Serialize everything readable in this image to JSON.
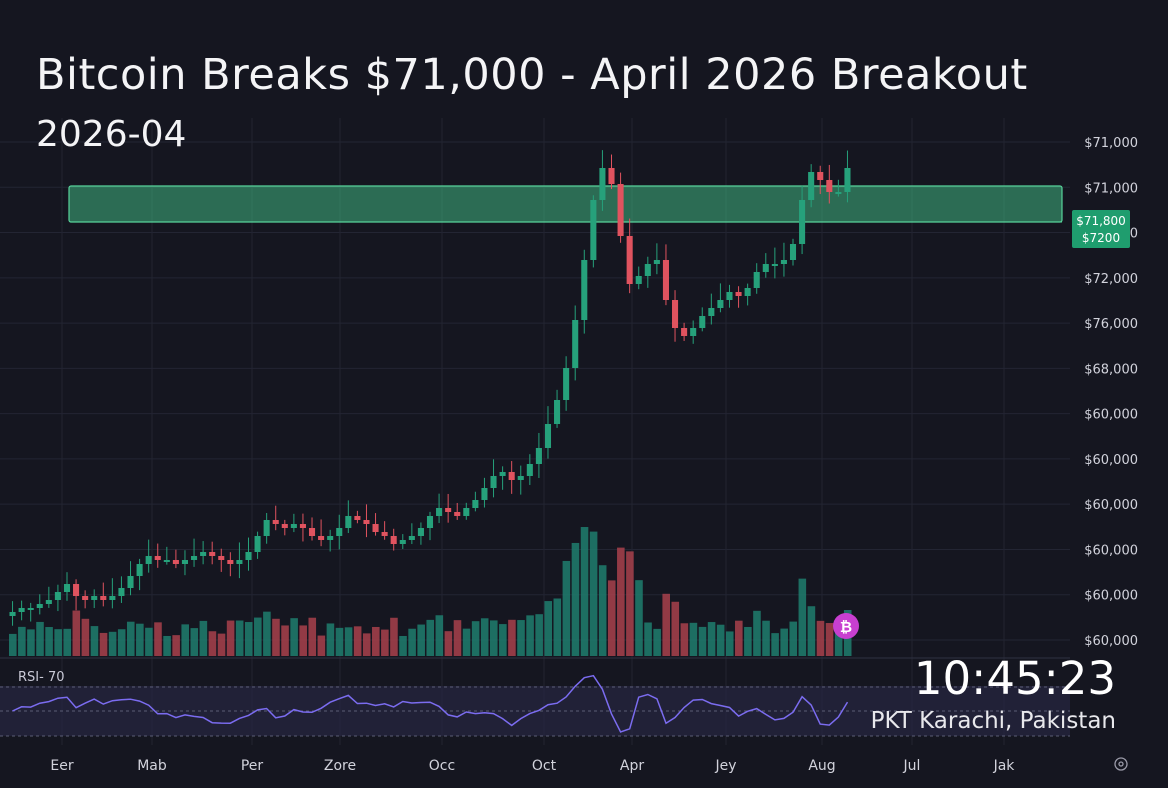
{
  "header": {
    "title": "Bitcoin Breaks $71,000 - April 2026 Breakout",
    "subtitle": "2026-04"
  },
  "overlay": {
    "time": "10:45:23",
    "location": "PKT Karachi, Pakistan"
  },
  "indicator": {
    "rsi_label": "RSI- 70"
  },
  "price_badge": {
    "line1": "$71,800",
    "line2": "$7200"
  },
  "colors": {
    "up": "#26a17b",
    "down": "#e0535f",
    "zone": "#3fb57f",
    "rsi": "#7b6cf0",
    "btc": "#c83fd0"
  },
  "chart_data": {
    "type": "candlestick",
    "x_labels": [
      "Eer",
      "Mab",
      "Per",
      "Zore",
      "Occ",
      "Oct",
      "Apr",
      "Jey",
      "Aug",
      "Jul",
      "Jak"
    ],
    "y_labels": [
      "$71,000",
      "$71,000",
      "$71,000",
      "$72,000",
      "$76,000",
      "$68,000",
      "$60,000",
      "$60,000",
      "$60,000",
      "$60,000",
      "$60,000",
      "$60,000"
    ],
    "resistance_zone": "$71,000",
    "close": [
      27,
      28,
      28,
      29,
      30,
      32,
      34,
      31,
      30,
      31,
      30,
      31,
      33,
      36,
      39,
      41,
      40,
      40,
      39,
      40,
      41,
      42,
      41,
      40,
      39,
      40,
      42,
      46,
      50,
      49,
      48,
      49,
      48,
      46,
      45,
      46,
      48,
      51,
      50,
      49,
      47,
      46,
      44,
      45,
      46,
      48,
      51,
      53,
      52,
      51,
      53,
      55,
      58,
      61,
      62,
      60,
      61,
      64,
      68,
      74,
      80,
      88,
      100,
      115,
      130,
      138,
      134,
      121,
      109,
      111,
      114,
      115,
      105,
      98,
      96,
      98,
      101,
      103,
      105,
      107,
      106,
      108,
      112,
      114,
      114,
      115,
      119,
      130,
      137,
      135,
      132,
      132,
      138
    ]
  }
}
